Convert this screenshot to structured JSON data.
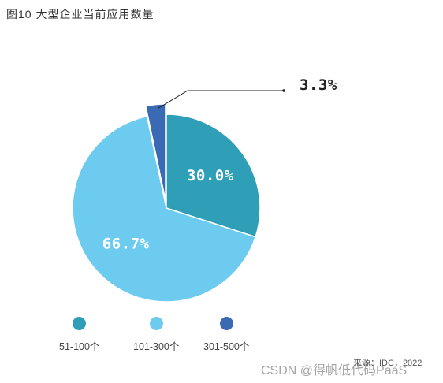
{
  "title": "图10  大型企业当前应用数量",
  "chart_data": {
    "type": "pie",
    "slices": [
      {
        "name": "51-100个",
        "value": 30.0,
        "label": "30.0%",
        "color": "#2f9fb8"
      },
      {
        "name": "101-300个",
        "value": 66.7,
        "label": "66.7%",
        "color": "#6ccbef"
      },
      {
        "name": "301-500个",
        "value": 3.3,
        "label": "3.3%",
        "color": "#3a6ab3"
      }
    ],
    "legend_position": "bottom"
  },
  "source": "来源：IDC，2022",
  "watermark": "CSDN @得帆低代码PaaS"
}
